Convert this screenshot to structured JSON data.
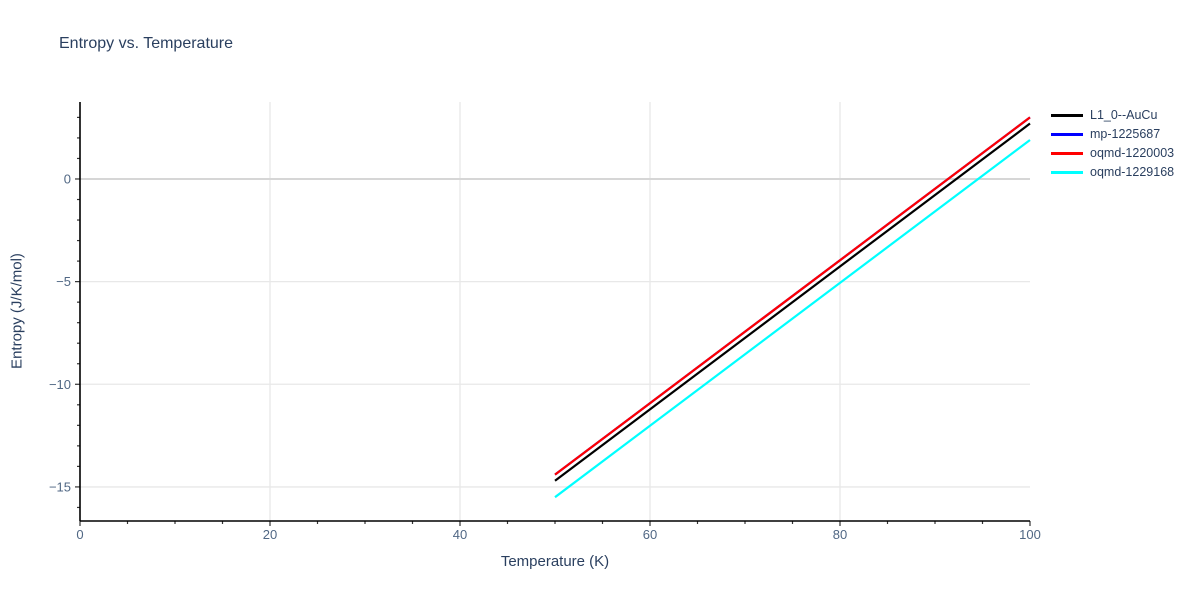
{
  "title": "Entropy vs. Temperature",
  "colors": {
    "background": "#ffffff",
    "title_text": "#2a3f5f",
    "tick_text": "#506784",
    "grid": "#e8e8e8",
    "zeroline": "#d6d6d6",
    "axis_line": "#000000",
    "tick_mark": "#333333"
  },
  "chart_data": {
    "type": "line",
    "title": "Entropy vs. Temperature",
    "xlabel": "Temperature (K)",
    "ylabel": "Entropy (J/K/mol)",
    "xlim": [
      0,
      100
    ],
    "ylim": [
      -16.66,
      3.75
    ],
    "grid": true,
    "legend_position": "top-right-outside",
    "x_major_ticks": [
      0,
      20,
      40,
      60,
      80,
      100
    ],
    "x_tick_labels": [
      "0",
      "20",
      "40",
      "60",
      "80",
      "100"
    ],
    "x_minor_step": 5,
    "x_gridlines": [
      20,
      40,
      60,
      80
    ],
    "y_major_ticks": [
      0,
      -5,
      -10,
      -15
    ],
    "y_tick_labels": [
      "0",
      "−5",
      "−10",
      "−15"
    ],
    "y_minor_step": 1,
    "y_gridlines": [
      -5,
      -10,
      -15
    ],
    "y_zeroline": 0,
    "series": [
      {
        "name": "L1_0--AuCu",
        "color": "#000000",
        "x": [
          50,
          100
        ],
        "y": [
          -14.7,
          2.7
        ]
      },
      {
        "name": "mp-1225687",
        "color": "#0000ff",
        "x": [
          50,
          100
        ],
        "y": [
          -14.4,
          3.0
        ],
        "note": "coincides with oqmd-1220003 line and is hidden beneath it"
      },
      {
        "name": "oqmd-1220003",
        "color": "#ff0000",
        "x": [
          50,
          100
        ],
        "y": [
          -14.4,
          3.0
        ]
      },
      {
        "name": "oqmd-1229168",
        "color": "#00ffff",
        "x": [
          50,
          100
        ],
        "y": [
          -15.5,
          1.9
        ]
      }
    ]
  }
}
